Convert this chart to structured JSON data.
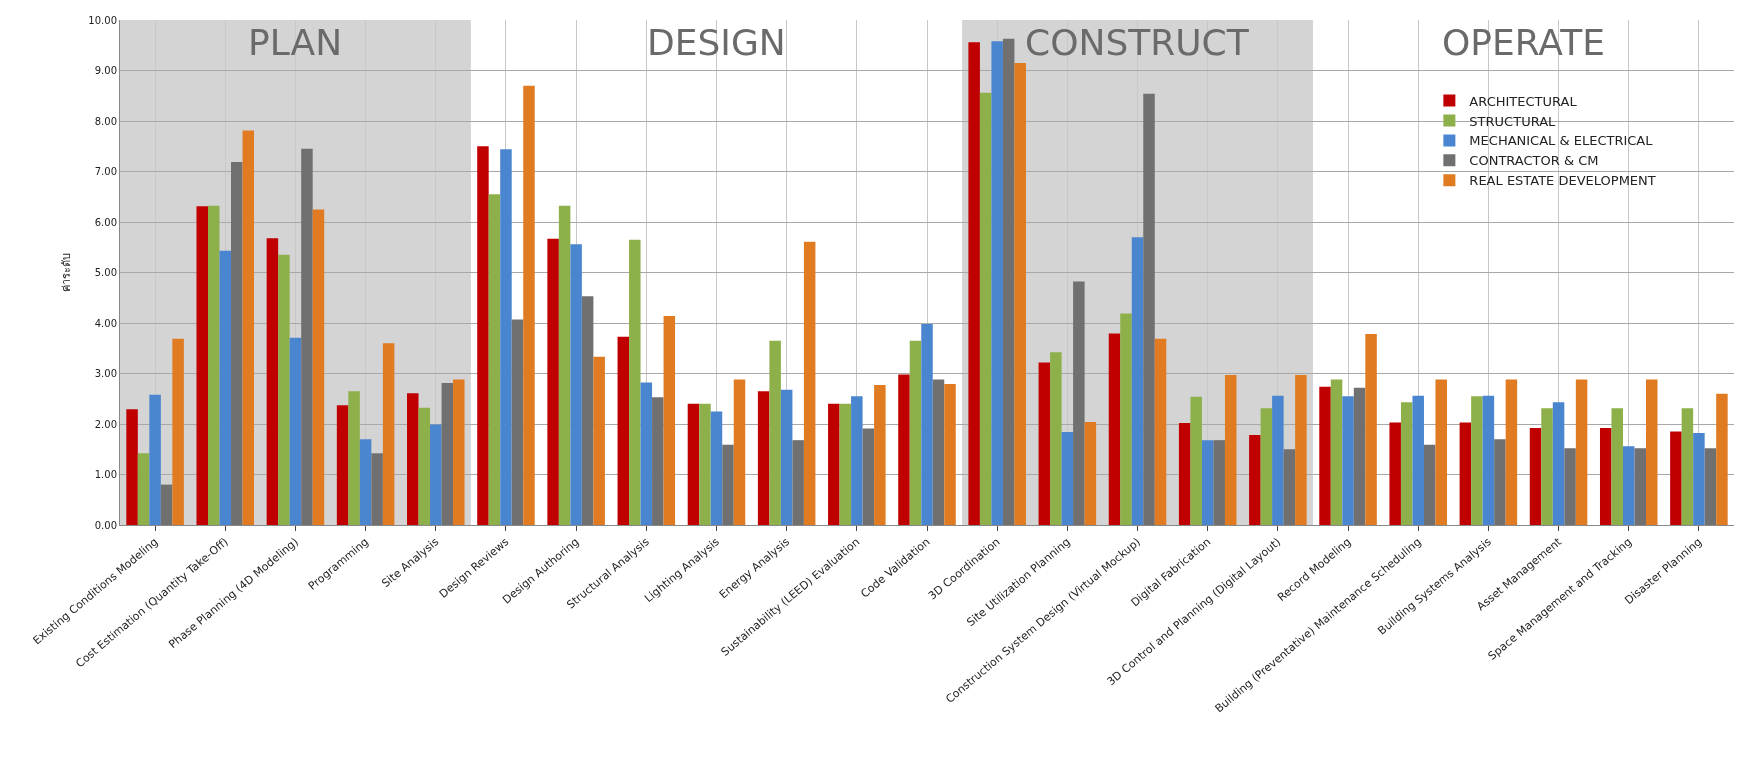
{
  "chart_data": {
    "type": "bar",
    "ylabel": "ค่าระดับ",
    "categories": [
      "Existing Conditions Modeling",
      "Cost Estimation (Quantity Take-Off)",
      "Phase Planning (4D Modeling)",
      "Programming",
      "Site Analysis",
      "Design Reviews",
      "Design Authoring",
      "Structural Analysis",
      "Lighting Analysis",
      "Energy Analysis",
      "Sustainability (LEED) Evaluation",
      "Code Validation",
      "3D Coordination",
      "Site Utilization Planning",
      "Construction System Design (Virtual Mockup)",
      "Digital Fabrication",
      "3D Control and Planning (Digital Layout)",
      "Record Modeling",
      "Building (Preventative) Maintenance Scheduling",
      "Building Systems Analysis",
      "Asset Management",
      "Space Management and Tracking",
      "Disaster Planning"
    ],
    "series": [
      {
        "name": "ARCHITECTURAL",
        "color": "#c00000",
        "values": [
          2.29,
          6.31,
          5.68,
          2.37,
          2.61,
          7.5,
          5.67,
          3.73,
          2.4,
          2.65,
          2.4,
          2.98,
          9.56,
          3.22,
          3.79,
          2.02,
          1.78,
          2.74,
          2.03,
          2.03,
          1.92,
          1.92,
          1.85
        ]
      },
      {
        "name": "STRUCTURAL",
        "color": "#8db04a",
        "values": [
          1.42,
          6.32,
          5.35,
          2.65,
          2.32,
          6.55,
          6.32,
          5.65,
          2.4,
          3.65,
          2.4,
          3.65,
          8.56,
          3.42,
          4.19,
          2.54,
          2.31,
          2.88,
          2.43,
          2.55,
          2.31,
          2.31,
          2.31
        ]
      },
      {
        "name": "MECHANICAL & ELECTRICAL",
        "color": "#4a86d0",
        "values": [
          2.58,
          5.43,
          3.71,
          1.7,
          1.99,
          7.44,
          5.56,
          2.82,
          2.25,
          2.68,
          2.55,
          3.98,
          9.58,
          1.84,
          5.7,
          1.68,
          2.56,
          2.55,
          2.56,
          2.56,
          2.43,
          1.56,
          1.82
        ]
      },
      {
        "name": "CONTRACTOR & CM",
        "color": "#707070",
        "values": [
          0.8,
          7.19,
          7.45,
          1.42,
          2.81,
          4.07,
          4.53,
          2.53,
          1.59,
          1.68,
          1.91,
          2.88,
          9.63,
          4.82,
          8.54,
          1.68,
          1.5,
          2.72,
          1.59,
          1.7,
          1.52,
          1.52,
          1.52
        ]
      },
      {
        "name": "REAL ESTATE DEVELOPMENT",
        "color": "#e07b22",
        "values": [
          3.69,
          7.81,
          6.25,
          3.6,
          2.88,
          8.7,
          3.33,
          4.14,
          2.88,
          5.61,
          2.77,
          2.79,
          9.15,
          2.04,
          3.69,
          2.97,
          2.97,
          3.78,
          2.88,
          2.88,
          2.88,
          2.88,
          2.6
        ]
      }
    ],
    "ylim": [
      0,
      10
    ],
    "yticks": [
      {
        "value": 0,
        "label": "0.00"
      },
      {
        "value": 1,
        "label": "1.00"
      },
      {
        "value": 2,
        "label": "2.00"
      },
      {
        "value": 3,
        "label": "3.00"
      },
      {
        "value": 4,
        "label": "4.00"
      },
      {
        "value": 5,
        "label": "5.00"
      },
      {
        "value": 6,
        "label": "6.00"
      },
      {
        "value": 7,
        "label": "7.00"
      },
      {
        "value": 8,
        "label": "8.00"
      },
      {
        "value": 9,
        "label": "9.00"
      },
      {
        "value": 10,
        "label": "10.00"
      }
    ],
    "bands": [
      {
        "axis": "x",
        "from": "Existing Conditions Modeling",
        "to": "Site Analysis",
        "label": "PLAN",
        "color": "#d4d4d4"
      },
      {
        "axis": "x",
        "from": "3D Coordination",
        "to": "3D Control and Planning (Digital Layout)",
        "label": "CONSTRUCT",
        "color": "#d4d4d4"
      }
    ],
    "annotations": [
      "DESIGN",
      "OPERATE"
    ],
    "grid": true,
    "legend": "top right"
  }
}
